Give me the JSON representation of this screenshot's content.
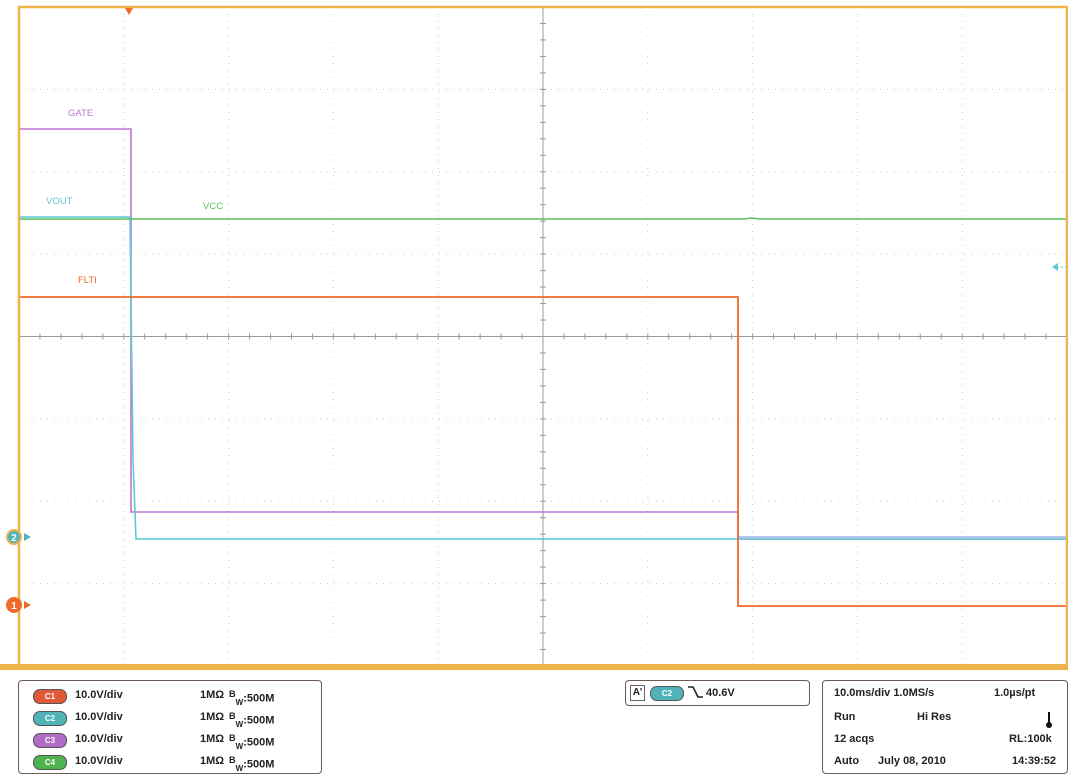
{
  "waveforms": {
    "gate": {
      "label": "GATE",
      "color": "#c173d6"
    },
    "vout": {
      "label": "VOUT",
      "color": "#5fc9d6"
    },
    "vcc": {
      "label": "VCC",
      "color": "#5cbf5c"
    },
    "flt": {
      "label": "FLTI",
      "color": "#ee6a2a"
    }
  },
  "markers": {
    "ch2_label": "2",
    "ch1_label": "1"
  },
  "colors": {
    "frame": "#f0b24a",
    "grid": "#c8c8c8",
    "ch1": "#e05a3a",
    "ch2": "#4fb3b8",
    "ch3": "#b06bc4",
    "ch4": "#4fb34f"
  },
  "channels": [
    {
      "id": "C1",
      "scale": "10.0V/div",
      "coupling": "1MΩ",
      "bw_b": "B",
      "bw_w": "W",
      "bw_val": ":500M"
    },
    {
      "id": "C2",
      "scale": "10.0V/div",
      "coupling": "1MΩ",
      "bw_b": "B",
      "bw_w": "W",
      "bw_val": ":500M"
    },
    {
      "id": "C3",
      "scale": "10.0V/div",
      "coupling": "1MΩ",
      "bw_b": "B",
      "bw_w": "W",
      "bw_val": ":500M"
    },
    {
      "id": "C4",
      "scale": "10.0V/div",
      "coupling": "1MΩ",
      "bw_b": "B",
      "bw_w": "W",
      "bw_val": ":500M"
    }
  ],
  "trigger": {
    "mode_letter": "A'",
    "source": "C2",
    "level": "40.6V"
  },
  "acquisition": {
    "timebase": "10.0ms/div 1.0MS/s",
    "resolution": "1.0µs/pt",
    "state": "Run",
    "mode": "Hi Res",
    "acqs": "12 acqs",
    "record_length": "RL:100k",
    "trigger_mode": "Auto",
    "date": "July 08, 2010",
    "time": "14:39:52"
  }
}
